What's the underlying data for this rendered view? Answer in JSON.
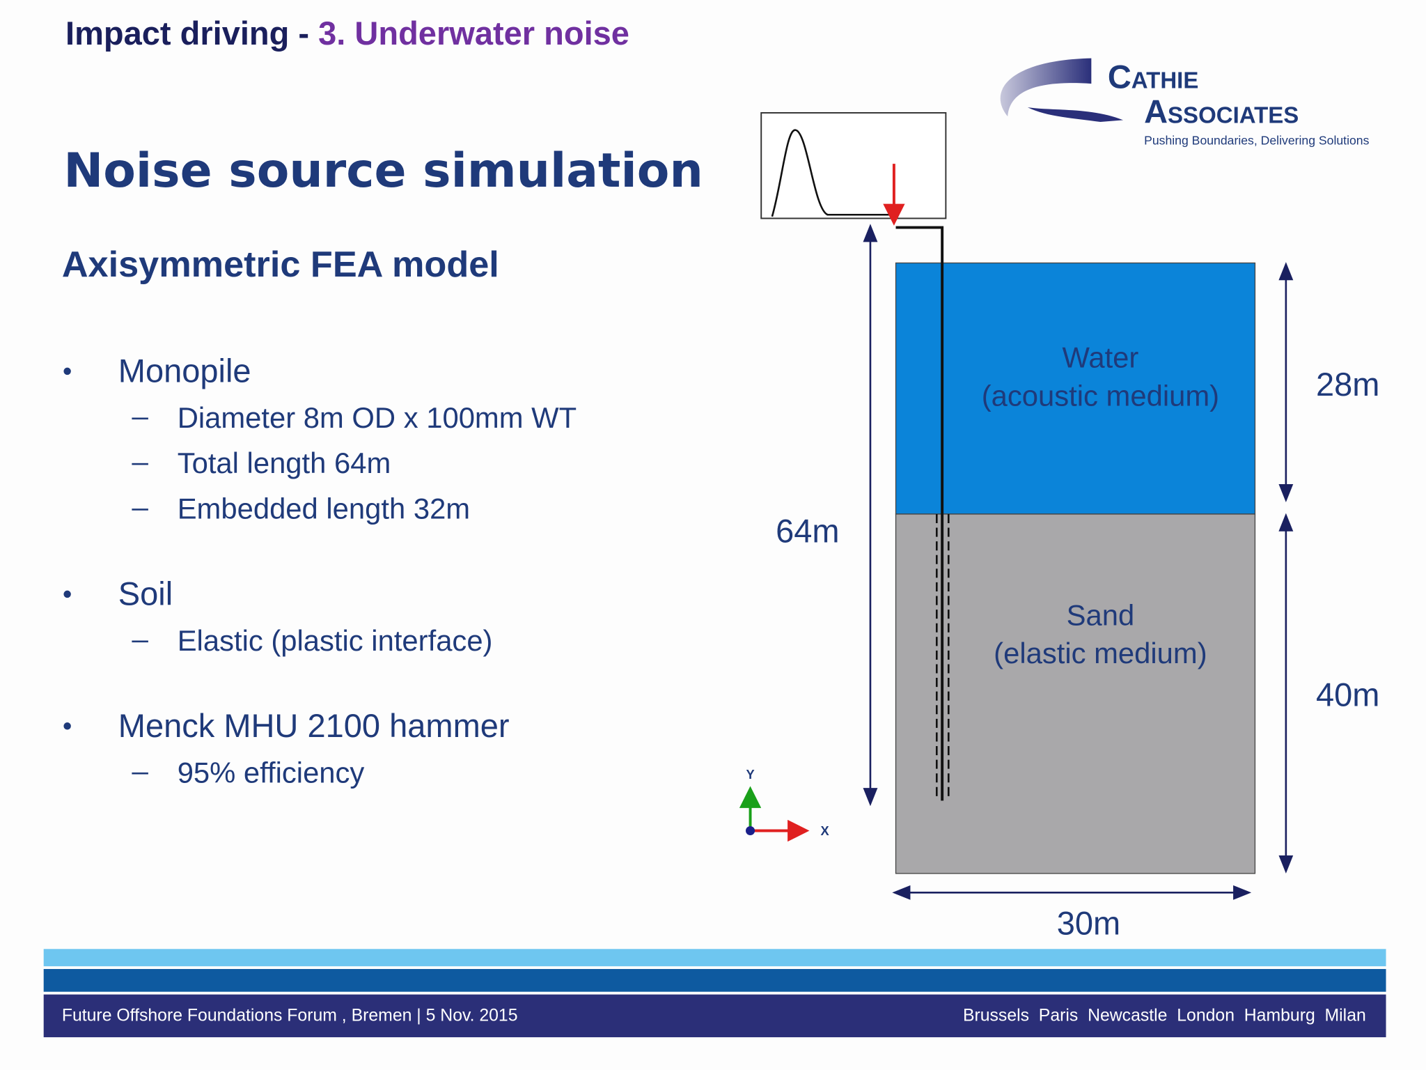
{
  "header": {
    "topic": "Impact driving -",
    "section": "3. Underwater noise"
  },
  "logo": {
    "line1": "Cathie",
    "line2": "Associates",
    "tagline": "Pushing Boundaries, Delivering Solutions"
  },
  "title": "Noise source simulation",
  "subtitle": "Axisymmetric FEA model",
  "bullets": [
    {
      "text": "Monopile",
      "items": [
        "Diameter 8m OD x 100mm WT",
        "Total length 64m",
        "Embedded length 32m"
      ]
    },
    {
      "text": "Soil",
      "items": [
        "Elastic (plastic interface)"
      ]
    },
    {
      "text": "Menck MHU 2100 hammer",
      "items": [
        "95% efficiency"
      ]
    }
  ],
  "diagram": {
    "water": [
      "Water",
      "(acoustic medium)"
    ],
    "sand": [
      "Sand",
      "(elastic medium)"
    ],
    "pile_length": "64m",
    "water_depth": "28m",
    "soil_depth": "40m",
    "width": "30m",
    "axis_y": "Y",
    "axis_x": "X"
  },
  "footer": {
    "event": "Future Offshore Foundations Forum , Bremen | 5 Nov. 2015",
    "cities": "Brussels  Paris  Newcastle  London  Hamburg  Milan"
  }
}
